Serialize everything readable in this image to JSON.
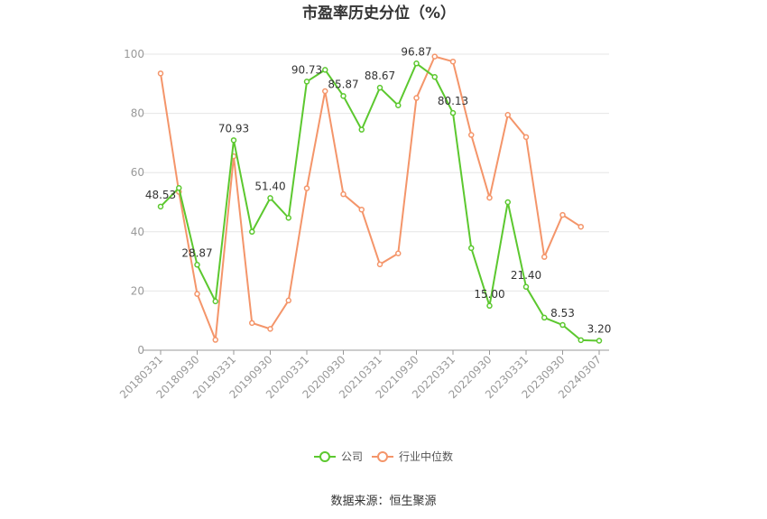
{
  "chart_data": {
    "type": "line",
    "title": "市盈率历史分位（%）",
    "xlabel": "",
    "ylabel": "",
    "ylim": [
      0,
      100
    ],
    "yticks": [
      0,
      20,
      40,
      60,
      80,
      100
    ],
    "grid": true,
    "legend_position": "bottom",
    "x": [
      "20180331",
      "20180630",
      "20180930",
      "20181231",
      "20190331",
      "20190630",
      "20190930",
      "20191231",
      "20200331",
      "20200630",
      "20200930",
      "20201231",
      "20210331",
      "20210630",
      "20210930",
      "20211231",
      "20220331",
      "20220630",
      "20220930",
      "20221231",
      "20230331",
      "20230630",
      "20230930",
      "20231231",
      "20240307"
    ],
    "x_tick_labels": [
      "20180331",
      "20180930",
      "20190331",
      "20190930",
      "20200331",
      "20200930",
      "20210331",
      "20210930",
      "20220331",
      "20220930",
      "20230331",
      "20230930",
      "20240307"
    ],
    "series": [
      {
        "name": "公司",
        "color": "#5cc82f",
        "values": [
          48.53,
          54.8,
          28.87,
          16.5,
          70.93,
          40.0,
          51.4,
          44.7,
          90.73,
          94.7,
          85.87,
          74.5,
          88.67,
          82.7,
          96.87,
          92.3,
          80.13,
          34.5,
          15.0,
          50.0,
          21.4,
          11.0,
          8.53,
          3.4,
          3.2
        ],
        "data_labels": {
          "0": "48.53",
          "2": "28.87",
          "4": "70.93",
          "6": "51.40",
          "8": "90.73",
          "10": "85.87",
          "12": "88.67",
          "14": "96.87",
          "16": "80.13",
          "18": "15.00",
          "20": "21.40",
          "22": "8.53",
          "24": "3.20"
        }
      },
      {
        "name": "行业中位数",
        "color": "#f4956a",
        "values": [
          93.5,
          53.5,
          19.0,
          3.5,
          65.5,
          9.2,
          7.2,
          16.8,
          54.7,
          87.5,
          52.7,
          47.5,
          29.0,
          32.7,
          85.2,
          99.2,
          97.5,
          72.7,
          51.5,
          79.5,
          72.0,
          31.5,
          45.7,
          41.7,
          null
        ]
      }
    ],
    "source": "数据来源：恒生聚源"
  }
}
